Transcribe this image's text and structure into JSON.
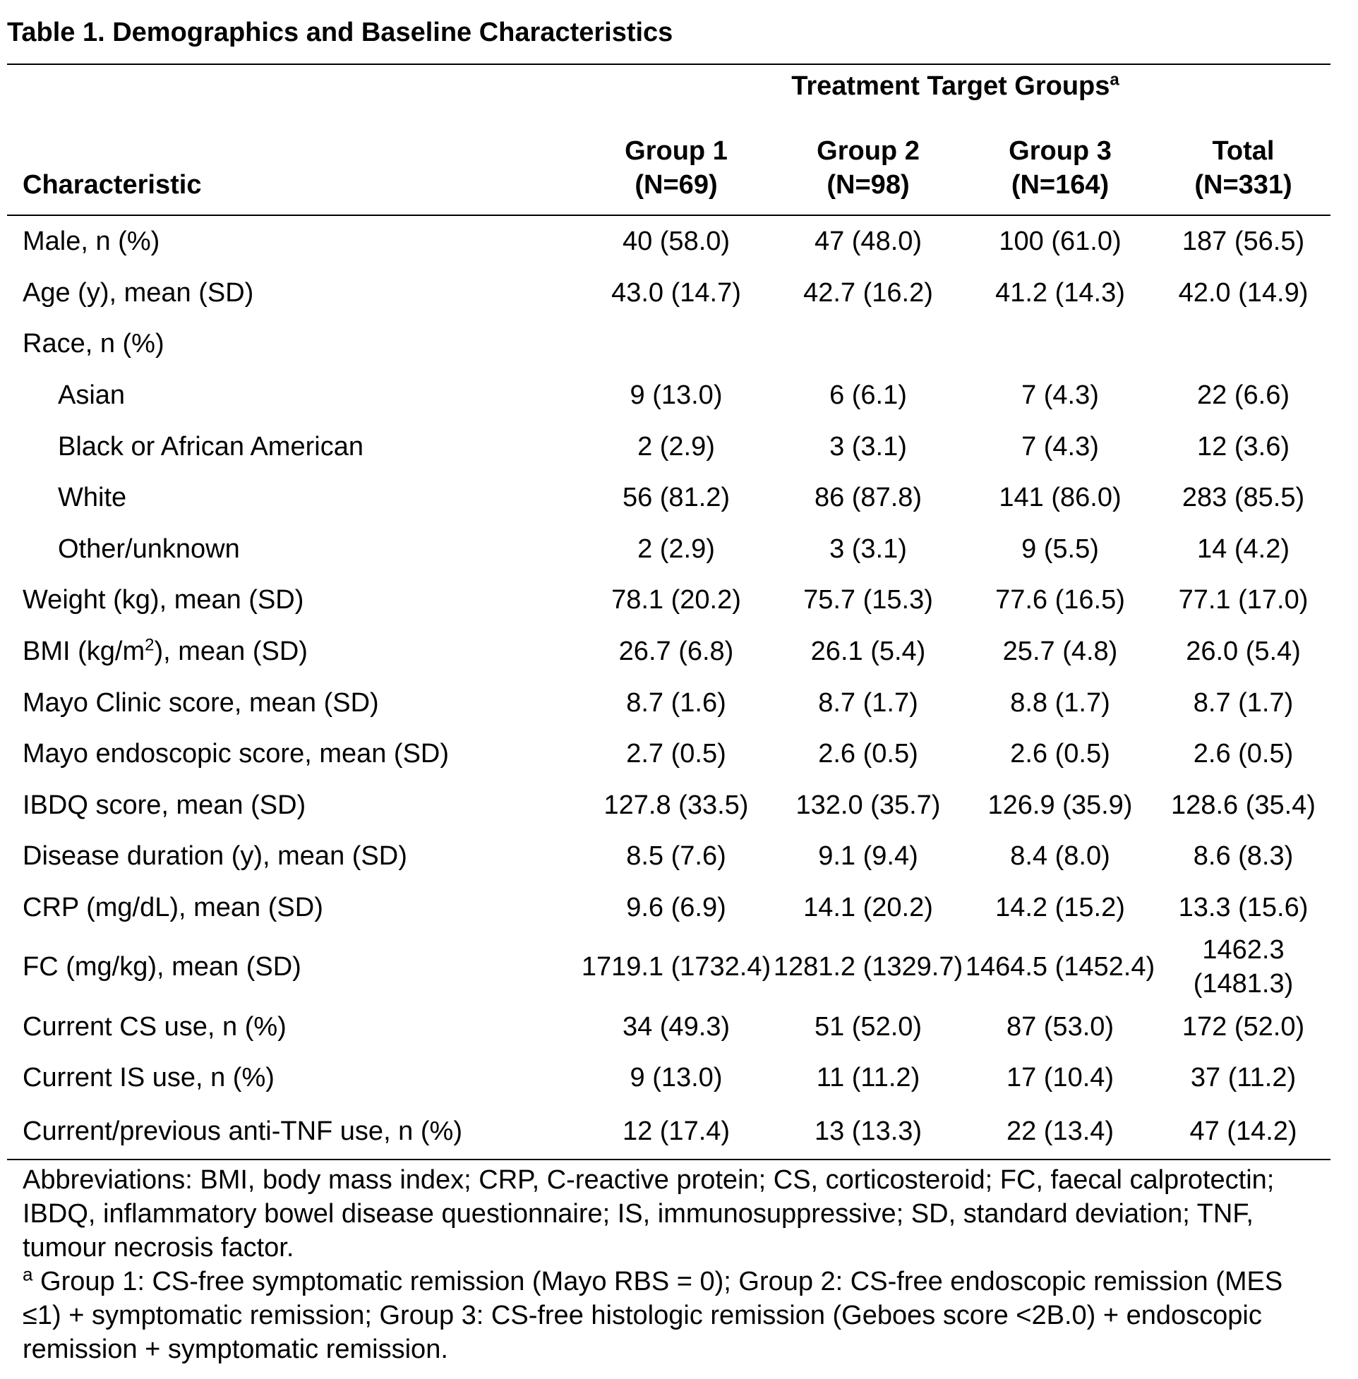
{
  "title": "Table 1. Demographics and Baseline Characteristics",
  "group_header": {
    "text": "Treatment Target Groups",
    "sup": "a"
  },
  "characteristic_header": "Characteristic",
  "columns": [
    {
      "name": "Group 1",
      "n": "(N=69)"
    },
    {
      "name": "Group 2",
      "n": "(N=98)"
    },
    {
      "name": "Group 3",
      "n": "(N=164)"
    },
    {
      "name": "Total",
      "n": "(N=331)"
    }
  ],
  "rows": [
    {
      "label": "Male, n (%)",
      "values": [
        "40 (58.0)",
        "47 (48.0)",
        "100 (61.0)",
        "187 (56.5)"
      ]
    },
    {
      "label": "Age (y), mean (SD)",
      "values": [
        "43.0 (14.7)",
        "42.7 (16.2)",
        "41.2 (14.3)",
        "42.0 (14.9)"
      ]
    },
    {
      "label": "Race, n (%)",
      "values": [
        "",
        "",
        "",
        ""
      ]
    },
    {
      "label": "Asian",
      "values": [
        "9 (13.0)",
        "6 (6.1)",
        "7 (4.3)",
        "22 (6.6)"
      ]
    },
    {
      "label": "Black or African American",
      "values": [
        "2 (2.9)",
        "3 (3.1)",
        "7 (4.3)",
        "12 (3.6)"
      ]
    },
    {
      "label": "White",
      "values": [
        "56 (81.2)",
        "86 (87.8)",
        "141 (86.0)",
        "283 (85.5)"
      ]
    },
    {
      "label": "Other/unknown",
      "values": [
        "2 (2.9)",
        "3 (3.1)",
        "9 (5.5)",
        "14 (4.2)"
      ]
    },
    {
      "label": "Weight (kg), mean (SD)",
      "values": [
        "78.1 (20.2)",
        "75.7 (15.3)",
        "77.6 (16.5)",
        "77.1 (17.0)"
      ]
    },
    {
      "label_pre": "BMI (kg/m",
      "label_sup": "2",
      "label_post": "), mean (SD)",
      "values": [
        "26.7 (6.8)",
        "26.1 (5.4)",
        "25.7 (4.8)",
        "26.0 (5.4)"
      ]
    },
    {
      "label": "Mayo Clinic score, mean (SD)",
      "values": [
        "8.7 (1.6)",
        "8.7 (1.7)",
        "8.8 (1.7)",
        "8.7 (1.7)"
      ]
    },
    {
      "label": "Mayo endoscopic score, mean (SD)",
      "values": [
        "2.7 (0.5)",
        "2.6 (0.5)",
        "2.6 (0.5)",
        "2.6 (0.5)"
      ]
    },
    {
      "label": "IBDQ score, mean (SD)",
      "values": [
        "127.8 (33.5)",
        "132.0 (35.7)",
        "126.9 (35.9)",
        "128.6 (35.4)"
      ]
    },
    {
      "label": "Disease duration (y), mean (SD)",
      "values": [
        "8.5 (7.6)",
        "9.1 (9.4)",
        "8.4 (8.0)",
        "8.6 (8.3)"
      ]
    },
    {
      "label": "CRP (mg/dL), mean (SD)",
      "values": [
        "9.6 (6.9)",
        "14.1 (20.2)",
        "14.2 (15.2)",
        "13.3 (15.6)"
      ]
    },
    {
      "label": "FC (mg/kg), mean (SD)",
      "values": [
        "1719.1 (1732.4)",
        "1281.2 (1329.7)",
        "1464.5 (1452.4)",
        "1462.3 (1481.3)"
      ]
    },
    {
      "label": "Current CS use, n (%)",
      "values": [
        "34 (49.3)",
        "51 (52.0)",
        "87 (53.0)",
        "172 (52.0)"
      ]
    },
    {
      "label": "Current IS use, n (%)",
      "values": [
        "9 (13.0)",
        "11 (11.2)",
        "17 (10.4)",
        "37 (11.2)"
      ]
    },
    {
      "label": "Current/previous anti-TNF use, n (%)",
      "values": [
        "12 (17.4)",
        "13 (13.3)",
        "22 (13.4)",
        "47 (14.2)"
      ]
    }
  ],
  "footnotes": {
    "abbreviations": "Abbreviations: BMI, body mass index; CRP, C-reactive protein; CS, corticosteroid; FC, faecal calprotectin; IBDQ, inflammatory bowel disease questionnaire; IS, immunosuppressive; SD, standard deviation; TNF, tumour necrosis factor.",
    "note_marker": "a",
    "note_text": " Group 1: CS-free symptomatic remission (Mayo RBS = 0); Group 2: CS-free endoscopic remission (MES ≤1) + symptomatic remission; Group 3: CS-free histologic remission (Geboes score <2B.0) + endoscopic remission + symptomatic remission."
  }
}
